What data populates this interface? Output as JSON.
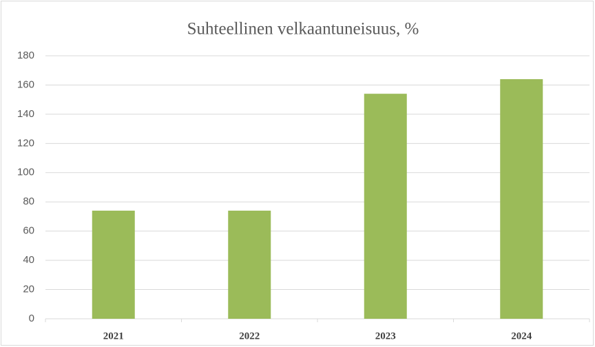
{
  "chart_data": {
    "type": "bar",
    "title": "Suhteellinen velkaantuneisuus, %",
    "categories": [
      "2021",
      "2022",
      "2023",
      "2024"
    ],
    "values": [
      74,
      74,
      154,
      164
    ],
    "color": "#9bbb59",
    "ylim": [
      0,
      180
    ],
    "yticks": [
      0,
      20,
      40,
      60,
      80,
      100,
      120,
      140,
      160,
      180
    ],
    "grid": true
  }
}
